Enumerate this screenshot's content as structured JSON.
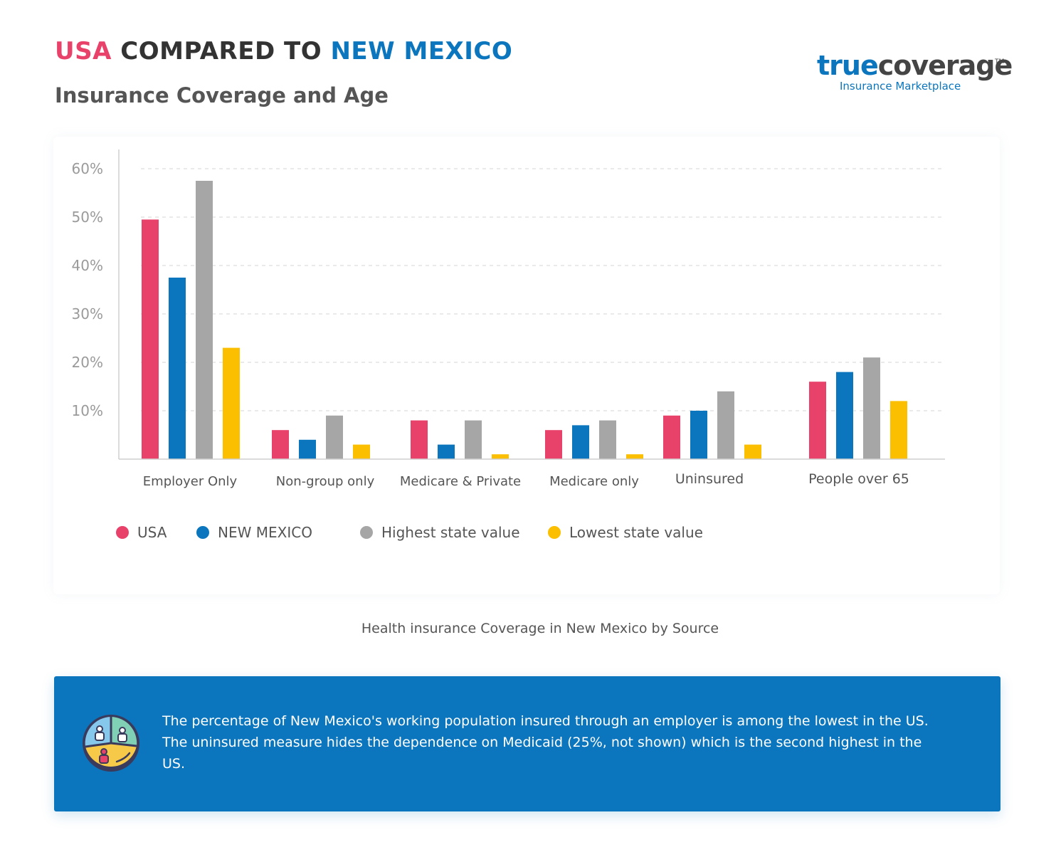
{
  "header": {
    "title_usa": "USA",
    "title_mid": " COMPARED TO ",
    "title_nm": "NEW MEXICO",
    "subtitle": "Insurance Coverage and Age"
  },
  "logo": {
    "word_true": "true",
    "word_coverage": "coverage",
    "trademark": "TM",
    "tagline": "Insurance Marketplace"
  },
  "chart_data": {
    "type": "bar",
    "title": "",
    "xlabel": "",
    "ylabel": "",
    "ylim": [
      0,
      60
    ],
    "yticks": [
      10,
      20,
      30,
      40,
      50,
      60
    ],
    "ytick_labels": [
      "10%",
      "20%",
      "30%",
      "40%",
      "50%",
      "60%"
    ],
    "grid": true,
    "legend_position": "bottom-left",
    "categories": [
      "Employer Only",
      "Non-group only",
      "Medicare & Private",
      "Medicare only",
      "Uninsured",
      "People over 65"
    ],
    "series": [
      {
        "name": "USA",
        "color": "#e8416a",
        "values": [
          49.5,
          6,
          8,
          6,
          9,
          16
        ]
      },
      {
        "name": "NEW MEXICO",
        "color": "#0b76bd",
        "values": [
          37.5,
          4,
          3,
          7,
          10,
          18
        ]
      },
      {
        "name": "Highest state value",
        "color": "#a6a6a6",
        "values": [
          57.5,
          9,
          8,
          8,
          14,
          21
        ]
      },
      {
        "name": "Lowest state value",
        "color": "#fbbf00",
        "values": [
          23,
          3,
          1,
          1,
          3,
          12
        ]
      }
    ]
  },
  "caption": "Health insurance Coverage in New Mexico by Source",
  "info": {
    "icon": "population-pie-icon",
    "text": "The percentage of New Mexico's working population insured through an employer is among the lowest in the US.  The uninsured measure hides the dependence on Medicaid (25%, not shown) which is the second highest in the US."
  }
}
